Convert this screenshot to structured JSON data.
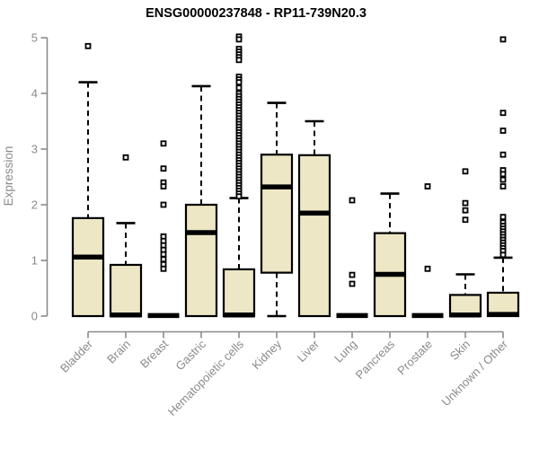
{
  "chart_data": {
    "type": "boxplot",
    "title": "ENSG00000237848 - RP11-739N20.3",
    "ylabel": "Expression",
    "xlabel": "",
    "ylim": [
      0,
      5
    ],
    "yticks": [
      0,
      1,
      2,
      3,
      4,
      5
    ],
    "grid": false,
    "legend": "none",
    "categories": [
      "Bladder",
      "Brain",
      "Breast",
      "Gastric",
      "Hematopoietic cells",
      "Kidney",
      "Liver",
      "Lung",
      "Pancreas",
      "Prostate",
      "Skin",
      "Unknown / Other"
    ],
    "groups": [
      {
        "label": "Bladder",
        "q1": 0,
        "median": 1.06,
        "q3": 1.76,
        "whisker_low": 0,
        "whisker_high": 4.2,
        "outliers": [
          4.85
        ]
      },
      {
        "label": "Brain",
        "q1": 0,
        "median": 0.02,
        "q3": 0.92,
        "whisker_low": 0,
        "whisker_high": 1.67,
        "outliers": [
          2.85
        ]
      },
      {
        "label": "Breast",
        "q1": 0,
        "median": 0.01,
        "q3": 0.02,
        "whisker_low": 0,
        "whisker_high": 0.02,
        "outliers": [
          3.1,
          2.65,
          2.4,
          2.33,
          2.0,
          1.43,
          1.35,
          1.27,
          1.19,
          1.11,
          1.02,
          0.93,
          0.85
        ]
      },
      {
        "label": "Gastric",
        "q1": 0,
        "median": 1.5,
        "q3": 2.0,
        "whisker_low": 0,
        "whisker_high": 4.13,
        "outliers": []
      },
      {
        "label": "Hematopoietic cells",
        "q1": 0,
        "median": 0.02,
        "q3": 0.84,
        "whisker_low": 0,
        "whisker_high": 2.12,
        "outliers": [
          5.02,
          4.97,
          4.8,
          4.75,
          4.7,
          4.65,
          4.6,
          4.3,
          4.25,
          4.2,
          4.1,
          4.0,
          3.95,
          3.9,
          3.85,
          3.8,
          3.75,
          3.7,
          3.65,
          3.6,
          3.55,
          3.5,
          3.45,
          3.4,
          3.35,
          3.3,
          3.25,
          3.2,
          3.15,
          3.1,
          3.05,
          3.0,
          2.95,
          2.9,
          2.85,
          2.8,
          2.75,
          2.7,
          2.65,
          2.6,
          2.55,
          2.5,
          2.45,
          2.4,
          2.35,
          2.3,
          2.25,
          2.2,
          2.15
        ]
      },
      {
        "label": "Kidney",
        "q1": 0.78,
        "median": 2.32,
        "q3": 2.9,
        "whisker_low": 0,
        "whisker_high": 3.83,
        "outliers": []
      },
      {
        "label": "Liver",
        "q1": 0,
        "median": 1.85,
        "q3": 2.89,
        "whisker_low": 0,
        "whisker_high": 3.5,
        "outliers": []
      },
      {
        "label": "Lung",
        "q1": 0,
        "median": 0.01,
        "q3": 0.02,
        "whisker_low": 0,
        "whisker_high": 0.02,
        "outliers": [
          2.08,
          0.74,
          0.58
        ]
      },
      {
        "label": "Pancreas",
        "q1": 0,
        "median": 0.75,
        "q3": 1.49,
        "whisker_low": 0,
        "whisker_high": 2.2,
        "outliers": []
      },
      {
        "label": "Prostate",
        "q1": 0,
        "median": 0.01,
        "q3": 0.02,
        "whisker_low": 0,
        "whisker_high": 0.02,
        "outliers": [
          2.33,
          0.85
        ]
      },
      {
        "label": "Skin",
        "q1": 0,
        "median": 0.02,
        "q3": 0.38,
        "whisker_low": 0,
        "whisker_high": 0.75,
        "outliers": [
          2.6,
          2.03,
          1.9,
          1.73
        ]
      },
      {
        "label": "Unknown / Other",
        "q1": 0,
        "median": 0.03,
        "q3": 0.42,
        "whisker_low": 0,
        "whisker_high": 1.05,
        "outliers": [
          4.97,
          3.65,
          3.33,
          2.9,
          2.62,
          2.55,
          2.45,
          2.33,
          1.78,
          1.68,
          1.62,
          1.57,
          1.52,
          1.47,
          1.42,
          1.37,
          1.32,
          1.27,
          1.22,
          1.17,
          1.1
        ]
      }
    ]
  },
  "style": {
    "background": "#ffffff",
    "box_fill": "#ede7c6",
    "line_color": "#000000",
    "axis_color": "#8a8a8a",
    "text_color": "#8a8a8a",
    "title_color": "#000000"
  }
}
